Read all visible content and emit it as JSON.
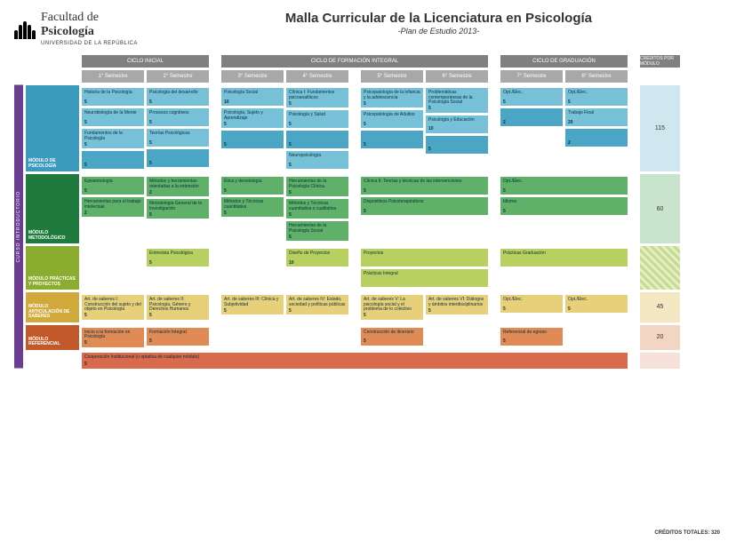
{
  "header": {
    "faculty": "Facultad de",
    "dept": "Psicología",
    "university": "UNIVERSIDAD DE LA REPÚBLICA",
    "title": "Malla Curricular de la Licenciatura en Psicología",
    "subtitle": "-Plan de Estudio 2013-"
  },
  "intro_bar": "CURSO INTRODUCTORIO",
  "cycles": [
    {
      "label": "CICLO INICIAL"
    },
    {
      "label": "CICLO DE FORMACIÓN INTEGRAL"
    },
    {
      "label": "CICLO DE GRADUACIÓN"
    }
  ],
  "credits_header": "CRÉDITOS POR MÓDULO",
  "semesters": [
    "1° Semestre",
    "2° Semestre",
    "3° Semestre",
    "4° Semestre",
    "5° Semestre",
    "6° Semestre",
    "7° Semestre",
    "8° Semestre"
  ],
  "colors": {
    "psico_label": "#3a9bbf",
    "psico_course": "#76c0d8",
    "psico_dark": "#4aa6c4",
    "metod_label": "#1f7a3d",
    "metod_course": "#5fb069",
    "metod_dark": "#2f8a45",
    "prac_label": "#8aad2f",
    "prac_course": "#b7d05f",
    "art_label": "#d1a93a",
    "art_course": "#e8d07a",
    "ref_label": "#c1592a",
    "ref_course": "#e08a56",
    "coop": "#d96a4b",
    "credit_psico": "#cfe8f0",
    "credit_metod": "#c9e4cd",
    "credit_art": "#f3e8c2",
    "credit_ref": "#f2d6c3",
    "credit_coop": "#f6e2da"
  },
  "modules": {
    "psico": {
      "label": "MÓDULO DE PSICOLOGÍA",
      "credits_total": "115",
      "sem": [
        [
          {
            "t": "Historia de la Psicología",
            "c": "5"
          },
          {
            "t": "Neurobiología de la Mente",
            "c": "5"
          },
          {
            "t": "Fundamentos de la Psicología",
            "c": "5"
          },
          {
            "t": "",
            "c": "5",
            "dark": true
          }
        ],
        [
          {
            "t": "Psicología del desarrollo",
            "c": "5"
          },
          {
            "t": "Procesos cognitivos",
            "c": "5"
          },
          {
            "t": "Teorías Psicológicas",
            "c": "5"
          },
          {
            "t": "",
            "c": "5",
            "dark": true
          }
        ],
        [
          {
            "t": "Psicología Social",
            "c": "10"
          },
          {
            "t": "Psicología, Sujeto y Aprendizaje",
            "c": "5"
          },
          {
            "t": "",
            "c": "5",
            "dark": true
          }
        ],
        [
          {
            "t": "Clínica I: Fundamentos psicoanalíticos",
            "c": "5"
          },
          {
            "t": "Psicología y Salud",
            "c": "5"
          },
          {
            "t": "",
            "c": "5",
            "dark": true
          },
          {
            "t": "Neuropsicología",
            "c": "5"
          }
        ],
        [
          {
            "t": "Psicopatología de la infancia y la adolescencia",
            "c": "5"
          },
          {
            "t": "Psicopatología de Adultos",
            "c": "5"
          },
          {
            "t": "",
            "c": "5",
            "dark": true
          }
        ],
        [
          {
            "t": "Problemáticas contemporáneas de la Psicología Social",
            "c": "5"
          },
          {
            "t": "Psicología y Educación",
            "c": "10"
          },
          {
            "t": "",
            "c": "5",
            "dark": true
          }
        ],
        [
          {
            "t": "Opt./Elec.",
            "c": "5"
          },
          {
            "t": "",
            "c": "2",
            "dark": true
          }
        ],
        [
          {
            "t": "Opt./Elec.",
            "c": "5"
          },
          {
            "t": "Trabajo Final",
            "c": "20"
          },
          {
            "t": "",
            "c": "2",
            "dark": true
          }
        ]
      ]
    },
    "metod": {
      "label": "MÓDULO METODOLÓGICO",
      "credits_total": "60",
      "sem": [
        [
          {
            "t": "Epistemología",
            "c": "5"
          },
          {
            "t": "Herramientas para el trabajo intelectual",
            "c": "2"
          }
        ],
        [
          {
            "t": "Métodos y herramientas orientadas a la extensión",
            "c": "2"
          },
          {
            "t": "Metodología General de la Investigación",
            "c": "5"
          }
        ],
        [
          {
            "t": "Ética y deontología",
            "c": "5"
          },
          {
            "t": "Métodos y Técnicas cuantitativa",
            "c": "5"
          }
        ],
        [
          {
            "t": "Herramientas de la Psicología Clínica",
            "c": "5"
          },
          {
            "t": "Métodos y Técnicas cuantitativa o cualitativa",
            "c": "5"
          },
          {
            "t": "Herramientas de la Psicología Social",
            "c": "5"
          }
        ],
        [
          {
            "t": "Clínica II: Teorías y técnicas de las intervenciones",
            "c": "5",
            "span": 2
          },
          null,
          {
            "t": "Dispositivos Psicoterapéuticos",
            "c": "5"
          }
        ],
        [],
        [
          {
            "t": "Opt./Elec.",
            "c": "5",
            "span": 2
          },
          null,
          {
            "t": "Idioma",
            "c": "5",
            "span": 2
          }
        ],
        []
      ]
    },
    "prac": {
      "label": "MÓDULO PRÁCTICAS Y PROYECTOS",
      "credits_total": "",
      "stripe": true,
      "sem": [
        [],
        [
          {
            "t": "Entrevista Psicológica",
            "c": "5"
          }
        ],
        [],
        [
          {
            "t": "Diseño de Proyectos",
            "c": "10"
          }
        ],
        [
          {
            "t": "Proyectos",
            "c": "",
            "span": 2
          },
          null,
          {
            "t": "Prácticas Integral",
            "c": "",
            "span": 2
          }
        ],
        [],
        [
          {
            "t": "Prácticas Graduación",
            "c": "",
            "span": 2
          }
        ],
        []
      ]
    },
    "art": {
      "label": "MÓDULO ARTICULACIÓN DE SABERES",
      "credits_total": "45",
      "sem": [
        [
          {
            "t": "Art. de saberes I: Construcción del sujeto y del objeto en Psicología",
            "c": "5"
          }
        ],
        [
          {
            "t": "Art. de saberes II: Psicología, Género y Derechos Humanos",
            "c": "5"
          }
        ],
        [
          {
            "t": "Art. de saberes III: Clínica y Subjetividad",
            "c": "5"
          }
        ],
        [
          {
            "t": "Art. de saberes IV: Estado, sociedad y políticas públicas",
            "c": "5"
          }
        ],
        [
          {
            "t": "Art. de saberes V: La psicología social y el problema de lo colectivo",
            "c": "5"
          }
        ],
        [
          {
            "t": "Art. de saberes VI: Diálogos y ámbitos interdisciplinarios",
            "c": "5"
          }
        ],
        [
          {
            "t": "Opt./Elec.",
            "c": "5"
          }
        ],
        [
          {
            "t": "Opt./Elec.",
            "c": "5"
          }
        ]
      ]
    },
    "ref": {
      "label": "MÓDULO REFERENCIAL",
      "credits_total": "20",
      "sem": [
        [
          {
            "t": "Inicio a la formación en Psicología",
            "c": "5"
          }
        ],
        [
          {
            "t": "Formación Integral",
            "c": "5"
          }
        ],
        [],
        [],
        [
          {
            "t": "Construcción de itinerario",
            "c": "5"
          }
        ],
        [],
        [
          {
            "t": "Referencial de egreso",
            "c": "5"
          }
        ],
        []
      ]
    }
  },
  "coop": {
    "label": "Cooperación Institucional (u optativa de cualquier módulo)",
    "credits": "5"
  },
  "total": "CRÉDITOS TOTALES: 320"
}
